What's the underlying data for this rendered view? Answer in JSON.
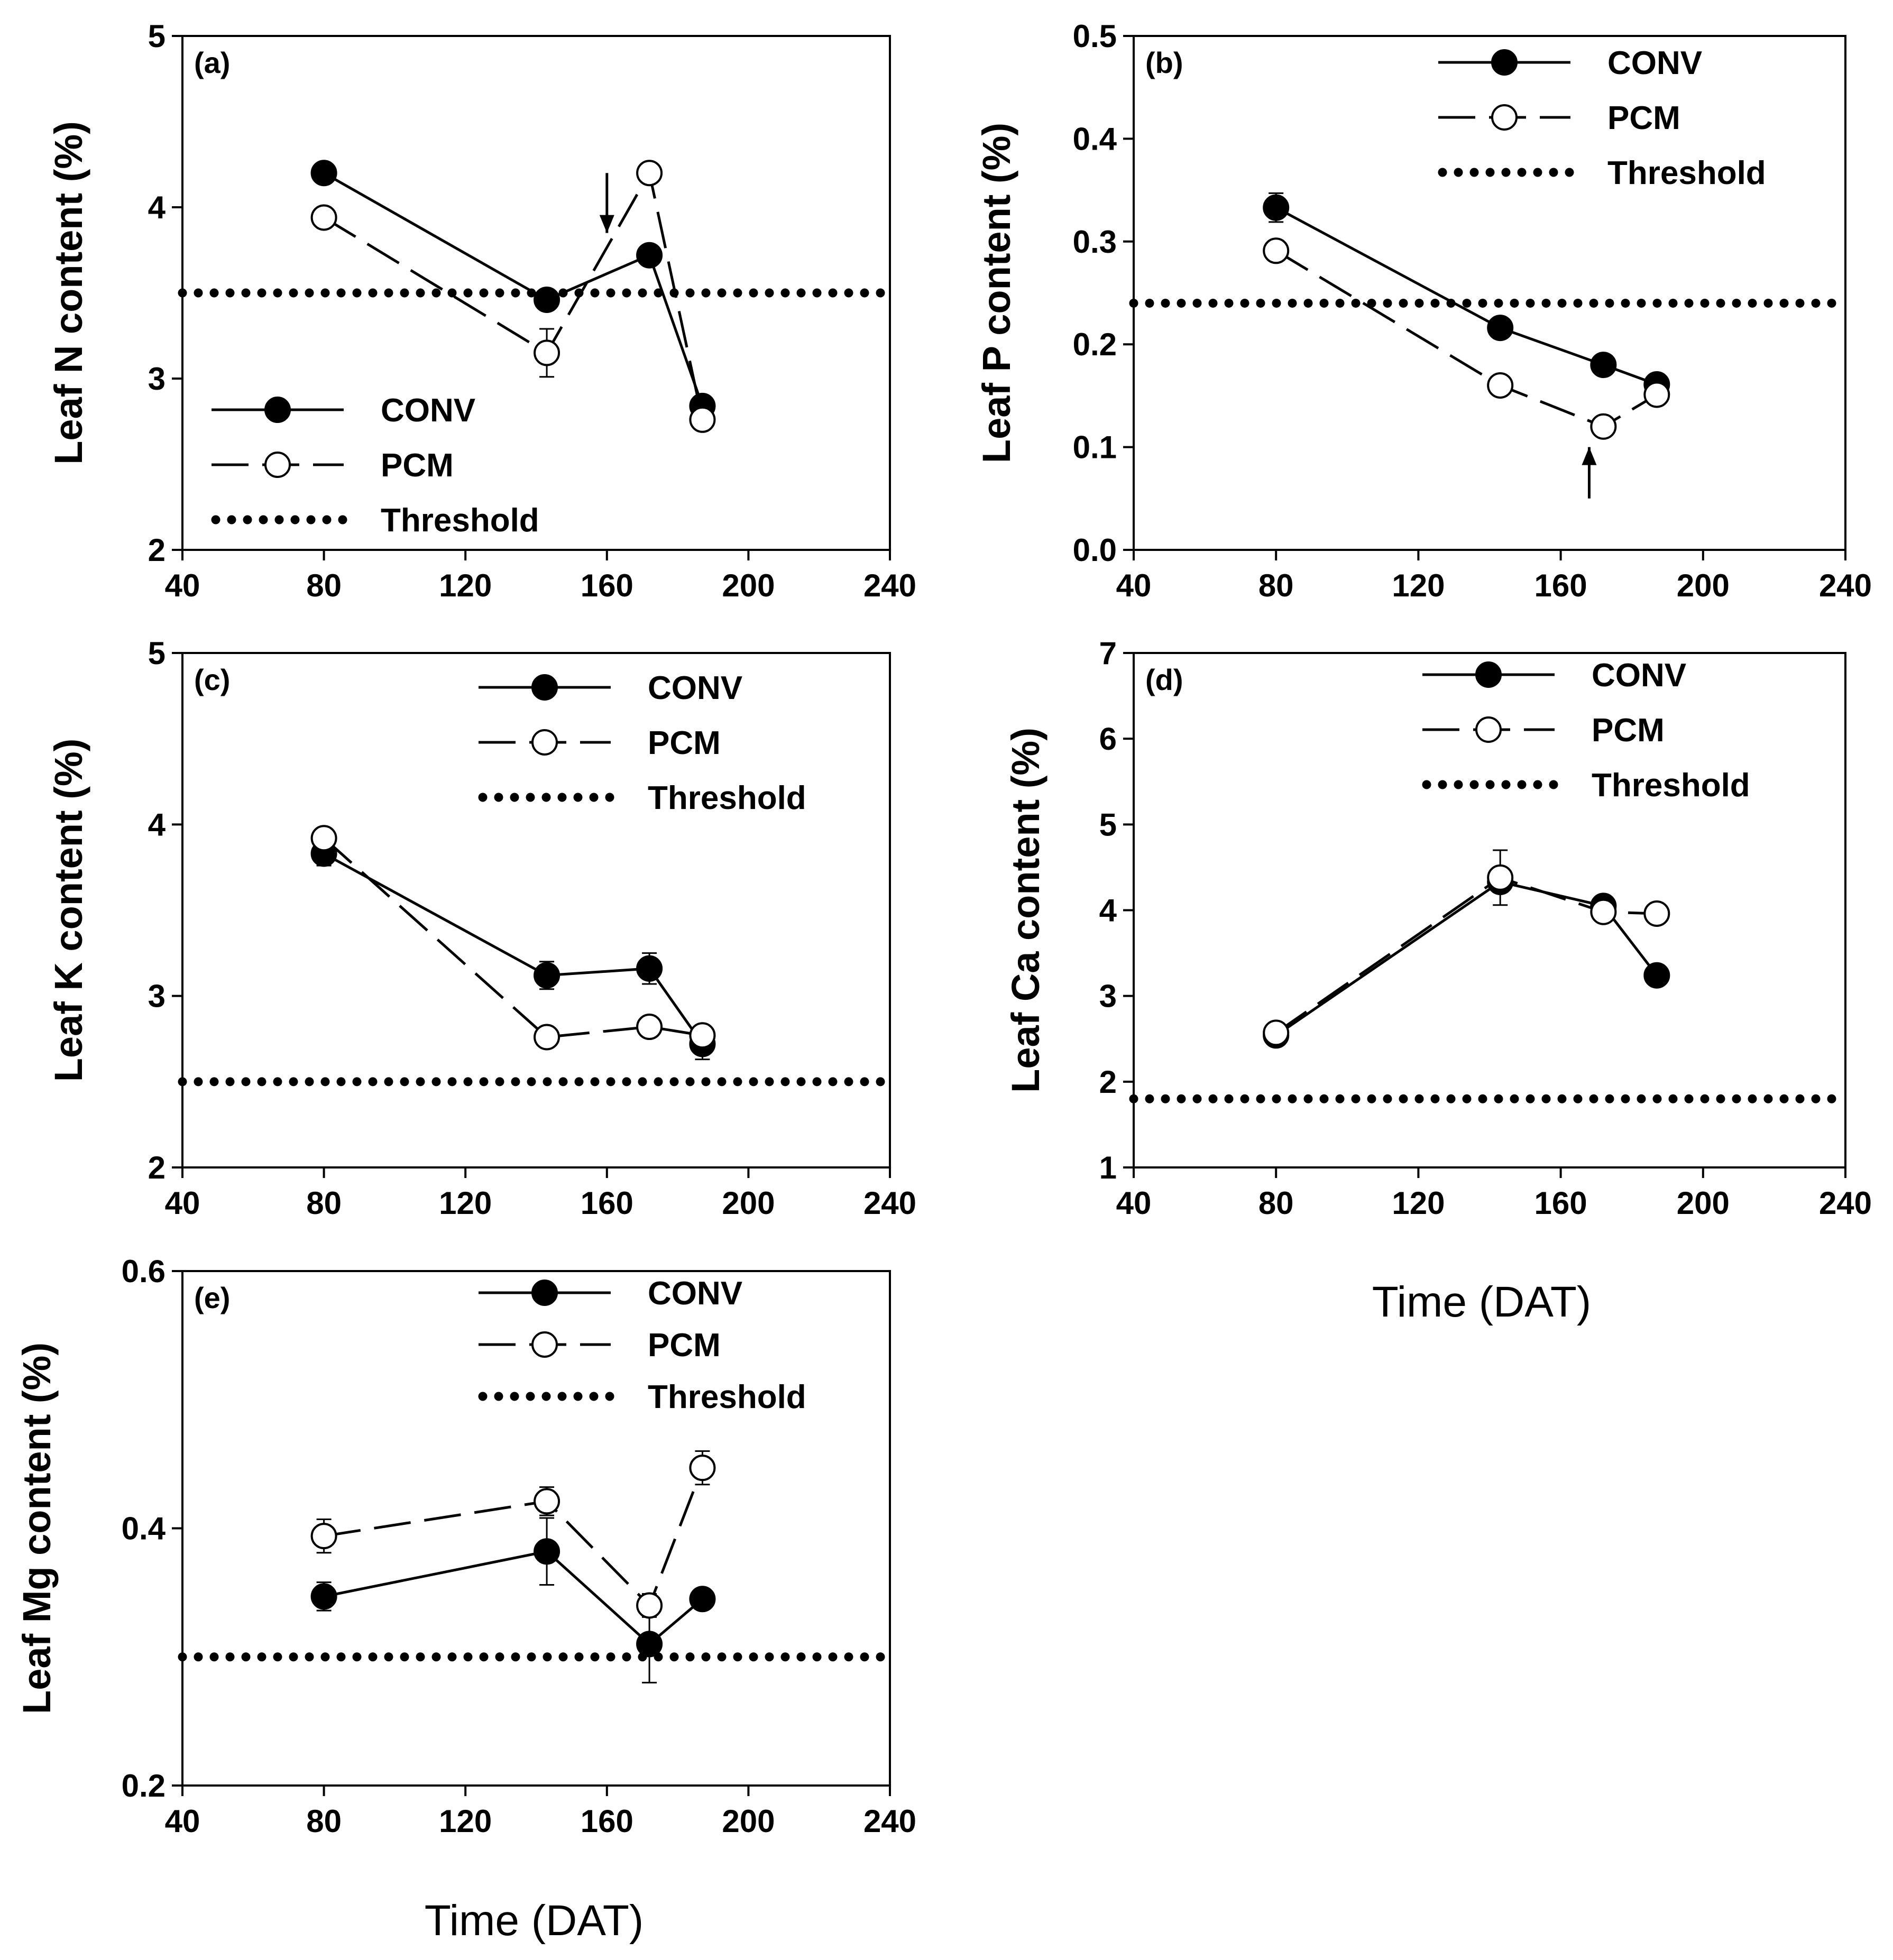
{
  "figure": {
    "xlabel_bottom_left": "Time (DAT)",
    "xlabel_right": "Time (DAT)"
  },
  "legend_labels": {
    "conv": "CONV",
    "pcm": "PCM",
    "threshold": "Threshold"
  },
  "chart_data": [
    {
      "id": "a",
      "type": "line",
      "panel_label": "(a)",
      "ylabel": "Leaf N content (%)",
      "xlabel": "",
      "xlim": [
        40,
        240
      ],
      "ylim": [
        2,
        5
      ],
      "xticks": [
        "40",
        "80",
        "120",
        "160",
        "200",
        "240"
      ],
      "yticks": [
        "2",
        "3",
        "4",
        "5"
      ],
      "legend_position": "bottom-left",
      "threshold": 3.5,
      "arrow": {
        "x": 160,
        "y_from": 4.2,
        "y_to": 3.85,
        "direction": "down"
      },
      "series": [
        {
          "name": "CONV",
          "marker": "filled",
          "line": "solid",
          "x": [
            80,
            143,
            172,
            187
          ],
          "values": [
            4.2,
            3.46,
            3.72,
            2.84
          ],
          "errors": [
            0.03,
            0.04,
            0.04,
            0.03
          ]
        },
        {
          "name": "PCM",
          "marker": "open",
          "line": "dashed",
          "x": [
            80,
            143,
            172,
            187
          ],
          "values": [
            3.94,
            3.15,
            4.2,
            2.76
          ],
          "errors": [
            0.03,
            0.14,
            0.04,
            0.03
          ]
        }
      ]
    },
    {
      "id": "b",
      "type": "line",
      "panel_label": "(b)",
      "ylabel": "Leaf P content (%)",
      "xlabel": "",
      "xlim": [
        40,
        240
      ],
      "ylim": [
        0.0,
        0.5
      ],
      "xticks": [
        "40",
        "80",
        "120",
        "160",
        "200",
        "240"
      ],
      "yticks": [
        "0.0",
        "0.1",
        "0.2",
        "0.3",
        "0.4",
        "0.5"
      ],
      "legend_position": "top-right",
      "threshold": 0.24,
      "arrow": {
        "x": 168,
        "y_from": 0.05,
        "y_to": 0.1,
        "direction": "up"
      },
      "series": [
        {
          "name": "CONV",
          "marker": "filled",
          "line": "solid",
          "x": [
            80,
            143,
            172,
            187
          ],
          "values": [
            0.333,
            0.216,
            0.18,
            0.161
          ],
          "errors": [
            0.014,
            0.006,
            0.006,
            0.005
          ]
        },
        {
          "name": "PCM",
          "marker": "open",
          "line": "dashed",
          "x": [
            80,
            143,
            172,
            187
          ],
          "values": [
            0.291,
            0.16,
            0.12,
            0.151
          ],
          "errors": [
            0.006,
            0.005,
            0.005,
            0.005
          ]
        }
      ]
    },
    {
      "id": "c",
      "type": "line",
      "panel_label": "(c)",
      "ylabel": "Leaf K content (%)",
      "xlabel": "",
      "xlim": [
        40,
        240
      ],
      "ylim": [
        2,
        5
      ],
      "xticks": [
        "40",
        "80",
        "120",
        "160",
        "200",
        "240"
      ],
      "yticks": [
        "2",
        "3",
        "4",
        "5"
      ],
      "legend_position": "top-right",
      "threshold": 2.5,
      "series": [
        {
          "name": "CONV",
          "marker": "filled",
          "line": "solid",
          "x": [
            80,
            143,
            172,
            187
          ],
          "values": [
            3.83,
            3.12,
            3.16,
            2.72
          ],
          "errors": [
            0.07,
            0.08,
            0.09,
            0.09
          ]
        },
        {
          "name": "PCM",
          "marker": "open",
          "line": "dashed",
          "x": [
            80,
            143,
            172,
            187
          ],
          "values": [
            3.92,
            2.76,
            2.82,
            2.77
          ],
          "errors": [
            0.04,
            0.03,
            0.03,
            0.03
          ]
        }
      ]
    },
    {
      "id": "d",
      "type": "line",
      "panel_label": "(d)",
      "ylabel": "Leaf Ca content (%)",
      "xlabel": "Time (DAT)",
      "xlim": [
        40,
        240
      ],
      "ylim": [
        1,
        7
      ],
      "xticks": [
        "40",
        "80",
        "120",
        "160",
        "200",
        "240"
      ],
      "yticks": [
        "1",
        "2",
        "3",
        "4",
        "5",
        "6",
        "7"
      ],
      "legend_position": "top-right",
      "threshold": 1.8,
      "series": [
        {
          "name": "CONV",
          "marker": "filled",
          "line": "solid",
          "x": [
            80,
            143,
            172,
            187
          ],
          "values": [
            2.54,
            4.33,
            4.05,
            3.24
          ],
          "errors": [
            0.05,
            0.12,
            0.06,
            0.05
          ]
        },
        {
          "name": "PCM",
          "marker": "open",
          "line": "dashed",
          "x": [
            80,
            143,
            172,
            187
          ],
          "values": [
            2.57,
            4.38,
            3.98,
            3.96
          ],
          "errors": [
            0.05,
            0.32,
            0.06,
            0.05
          ]
        }
      ]
    },
    {
      "id": "e",
      "type": "line",
      "panel_label": "(e)",
      "ylabel": "Leaf Mg content (%)",
      "xlabel": "Time (DAT)",
      "xlim": [
        40,
        240
      ],
      "ylim": [
        0.2,
        0.6
      ],
      "xticks": [
        "40",
        "80",
        "120",
        "160",
        "200",
        "240"
      ],
      "yticks": [
        "0.2",
        "0.4",
        "0.6"
      ],
      "legend_position": "top-right",
      "threshold": 0.3,
      "series": [
        {
          "name": "CONV",
          "marker": "filled",
          "line": "solid",
          "x": [
            80,
            143,
            172,
            187
          ],
          "values": [
            0.347,
            0.382,
            0.31,
            0.345
          ],
          "errors": [
            0.011,
            0.026,
            0.03,
            0.006
          ]
        },
        {
          "name": "PCM",
          "marker": "open",
          "line": "dashed",
          "x": [
            80,
            143,
            172,
            187
          ],
          "values": [
            0.394,
            0.421,
            0.34,
            0.447
          ],
          "errors": [
            0.013,
            0.011,
            0.009,
            0.013
          ]
        }
      ]
    }
  ]
}
